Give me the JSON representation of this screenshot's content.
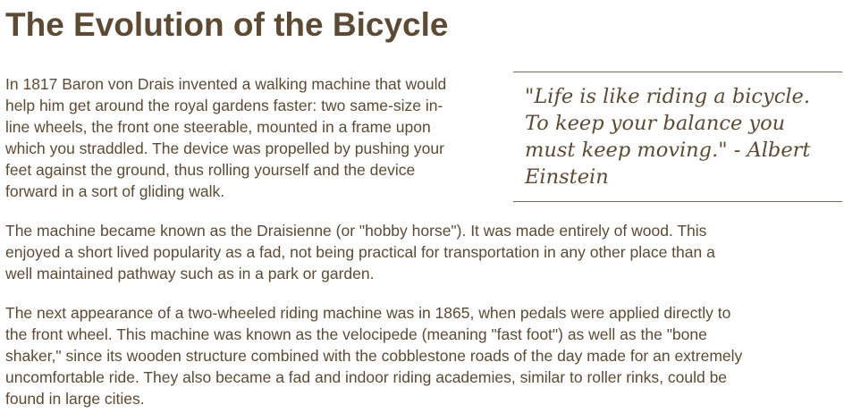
{
  "article": {
    "title": "The Evolution of the Bicycle",
    "quote": {
      "lines": [
        "\"Life is like riding a bicycle.",
        "To keep your balance you",
        "must keep moving.\" - Albert",
        "Einstein"
      ]
    },
    "paragraphs": [
      {
        "lines": [
          "In 1817 Baron von Drais invented a walking machine that would",
          "help him get around the royal gardens faster: two same-size in-",
          "line wheels, the front one steerable, mounted in a frame upon",
          "which you straddled. The device was propelled by pushing your",
          "feet against the ground, thus rolling yourself and the device",
          "forward in a sort of gliding walk."
        ]
      },
      {
        "lines": [
          "The machine became known as the Draisienne (or \"hobby horse\"). It was made entirely of wood. This",
          "enjoyed a short lived popularity as a fad, not being practical for transportation in any other place than a",
          "well maintained pathway such as in a park or garden."
        ]
      },
      {
        "lines": [
          "The next appearance of a two-wheeled riding machine was in 1865, when pedals were applied directly to",
          "the front wheel. This machine was known as the velocipede (meaning \"fast foot\") as well as the \"bone",
          "shaker,\" since its wooden structure combined with the cobblestone roads of the day made for an extremely",
          "uncomfortable ride. They also became a fad and indoor riding academies, similar to roller rinks, could be",
          "found in large cities."
        ]
      }
    ]
  }
}
